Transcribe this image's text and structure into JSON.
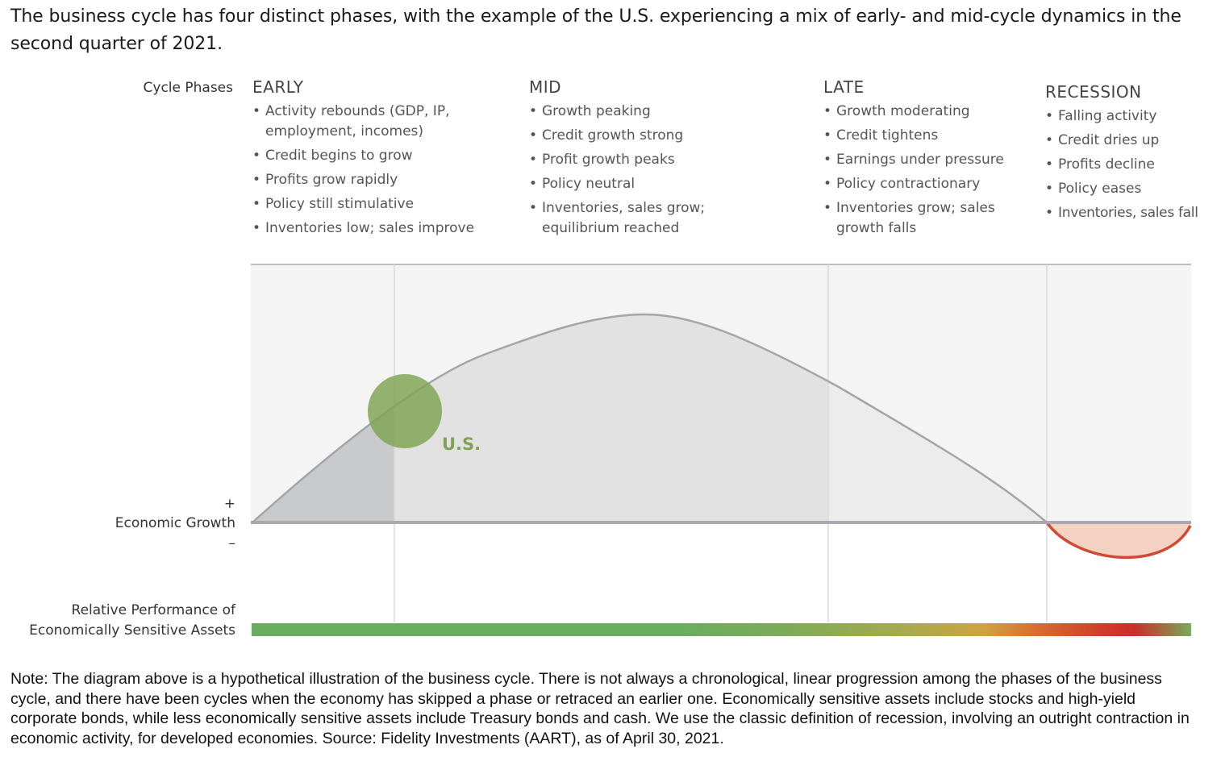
{
  "headline": "The business cycle has four distinct phases, with the example of the U.S. experiencing a mix of early- and mid-cycle dynamics in the second quarter of 2021.",
  "labels": {
    "cycle_phases": "Cycle Phases",
    "plus": "+",
    "economic_growth": "Economic Growth",
    "minus": "–",
    "relative_line1": "Relative Performance of",
    "relative_line2": "Economically Sensitive Assets"
  },
  "phases": [
    {
      "name": "EARLY",
      "items": [
        "Activity rebounds (GDP, IP, employment, incomes)",
        "Credit begins to grow",
        "Profits grow rapidly",
        "Policy still stimulative",
        "Inventories low; sales improve"
      ]
    },
    {
      "name": "MID",
      "items": [
        "Growth peaking",
        "Credit growth strong",
        "Profit growth peaks",
        "Policy neutral",
        "Inventories, sales grow; equilibrium reached"
      ]
    },
    {
      "name": "LATE",
      "items": [
        "Growth moderating",
        "Credit tightens",
        "Earnings under pressure",
        "Policy contractionary",
        "Inventories grow; sales growth falls"
      ]
    },
    {
      "name": "RECESSION",
      "items": [
        "Falling activity",
        "Credit dries up",
        "Profits decline",
        "Policy eases",
        "Inventories, sales fall"
      ]
    }
  ],
  "marker": {
    "label": "U.S.",
    "color": "#7fa352"
  },
  "colors": {
    "curve": "#a3a5a8",
    "fill_early": "#c8cacc",
    "fill_mid": "#e2e2e2",
    "fill_late": "#ececec",
    "recession_line": "#d04a35",
    "recession_fill": "#f3d2c2",
    "gradient": [
      "#6aad5e",
      "#6aad5e",
      "#7aab5a",
      "#a6aa4f",
      "#cda43f",
      "#d9712f",
      "#d0392a",
      "#c9302a",
      "#7aab5a"
    ]
  },
  "note": "Note: The diagram above is a hypothetical illustration of the business cycle. There is not always a chronological, linear progression among the phases of the business cycle, and there have been cycles when the economy has skipped a phase or retraced an earlier one. Economically sensitive assets include stocks and high-yield corporate bonds, while less economically sensitive assets include Treasury bonds and cash. We use the classic definition of recession, involving an outright contraction in economic activity, for developed economies. Source: Fidelity Investments (AART), as of April 30, 2021."
}
